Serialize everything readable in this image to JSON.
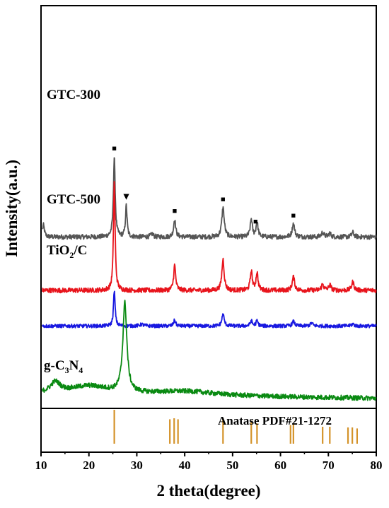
{
  "chart_data": {
    "type": "line",
    "xlabel": "2 theta(degree)",
    "ylabel": "Intensity(a.u.)",
    "xlim": [
      10,
      80
    ],
    "x_ticks": [
      "10",
      "20",
      "30",
      "40",
      "50",
      "60",
      "70",
      "80"
    ],
    "series": [
      {
        "name": "GTC-300",
        "color": "#555555",
        "baseline": 5.3,
        "noise": 0.08,
        "peaks": [
          [
            10.5,
            0.4,
            0.25
          ],
          [
            25.3,
            2.7,
            0.22
          ],
          [
            27.8,
            1.05,
            0.2
          ],
          [
            33.2,
            0.1,
            0.3
          ],
          [
            37.9,
            0.6,
            0.25
          ],
          [
            48.0,
            1.0,
            0.3
          ],
          [
            53.9,
            0.6,
            0.25
          ],
          [
            55.1,
            0.5,
            0.25
          ],
          [
            62.7,
            0.45,
            0.3
          ],
          [
            68.8,
            0.15,
            0.3
          ],
          [
            70.3,
            0.12,
            0.3
          ],
          [
            75.1,
            0.15,
            0.3
          ]
        ],
        "markers": [
          {
            "x": 25.3,
            "symbol": "■"
          },
          {
            "x": 27.8,
            "symbol": "▼"
          },
          {
            "x": 37.9,
            "symbol": "■"
          },
          {
            "x": 48.0,
            "symbol": "■"
          },
          {
            "x": 54.8,
            "symbol": "■"
          },
          {
            "x": 62.7,
            "symbol": "■"
          }
        ]
      },
      {
        "name": "GTC-500",
        "color": "#e8141c",
        "baseline": 3.5,
        "noise": 0.08,
        "peaks": [
          [
            25.3,
            3.7,
            0.2
          ],
          [
            37.9,
            0.85,
            0.25
          ],
          [
            48.0,
            1.05,
            0.28
          ],
          [
            53.9,
            0.65,
            0.25
          ],
          [
            55.1,
            0.6,
            0.25
          ],
          [
            62.7,
            0.45,
            0.3
          ],
          [
            68.8,
            0.2,
            0.3
          ],
          [
            70.3,
            0.18,
            0.3
          ],
          [
            75.1,
            0.28,
            0.3
          ]
        ]
      },
      {
        "name": "TiO2/C",
        "name_main": "TiO",
        "name_sub": "2",
        "name_tail": "/C",
        "color": "#1818e0",
        "baseline": 2.3,
        "noise": 0.06,
        "peaks": [
          [
            25.3,
            1.2,
            0.2
          ],
          [
            31.0,
            0.05,
            0.5
          ],
          [
            37.9,
            0.2,
            0.25
          ],
          [
            48.0,
            0.4,
            0.28
          ],
          [
            53.9,
            0.17,
            0.25
          ],
          [
            55.1,
            0.17,
            0.25
          ],
          [
            62.7,
            0.15,
            0.3
          ],
          [
            66.5,
            0.1,
            0.3
          ],
          [
            75.1,
            0.07,
            0.3
          ]
        ]
      },
      {
        "name": "g-C3N4",
        "name_parts": [
          "g-C",
          "3",
          "N",
          "4"
        ],
        "color": "#0a8a12",
        "baseline": 0.0,
        "noise": 0.08,
        "peaks": [
          [
            27.5,
            3.0,
            0.5
          ],
          [
            13.0,
            0.35,
            1.2
          ],
          [
            20.0,
            0.28,
            5.0
          ],
          [
            40.0,
            0.15,
            8.0
          ]
        ]
      }
    ],
    "reference": {
      "label": "Anatase PDF#21-1272",
      "color": "#d4932a",
      "lines": [
        {
          "x": 25.3,
          "h": 1.0
        },
        {
          "x": 36.9,
          "h": 0.72
        },
        {
          "x": 37.8,
          "h": 0.75
        },
        {
          "x": 38.6,
          "h": 0.72
        },
        {
          "x": 48.0,
          "h": 0.75
        },
        {
          "x": 53.9,
          "h": 0.68
        },
        {
          "x": 55.1,
          "h": 0.6
        },
        {
          "x": 62.1,
          "h": 0.55
        },
        {
          "x": 62.7,
          "h": 0.58
        },
        {
          "x": 68.8,
          "h": 0.5
        },
        {
          "x": 70.3,
          "h": 0.5
        },
        {
          "x": 74.1,
          "h": 0.48
        },
        {
          "x": 75.0,
          "h": 0.48
        },
        {
          "x": 76.0,
          "h": 0.45
        }
      ]
    }
  }
}
